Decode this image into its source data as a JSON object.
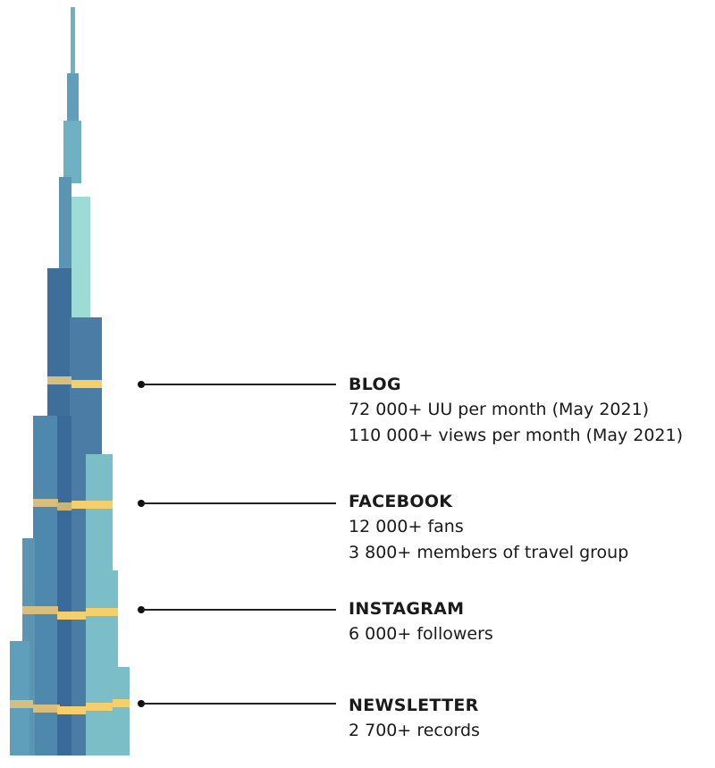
{
  "colors": {
    "dark_blue": "#3e6f9b",
    "mid_blue": "#4e88ad",
    "steel_blue": "#5c94b4",
    "teal": "#6fb1c3",
    "light_teal": "#7bbec8",
    "mint": "#9ddcd4",
    "gold": "#f5cf6b",
    "gold_muted": "#d8be7e"
  },
  "sections": [
    {
      "title": "BLOG",
      "lines": [
        "72 000+ UU per month (May 2021)",
        "110 000+ views per month (May 2021)"
      ]
    },
    {
      "title": "FACEBOOK",
      "lines": [
        "12 000+ fans",
        "3 800+ members of travel group"
      ]
    },
    {
      "title": "INSTAGRAM",
      "lines": [
        "6 000+ followers"
      ]
    },
    {
      "title": "NEWSLETTER",
      "lines": [
        "2 700+ records"
      ]
    }
  ]
}
